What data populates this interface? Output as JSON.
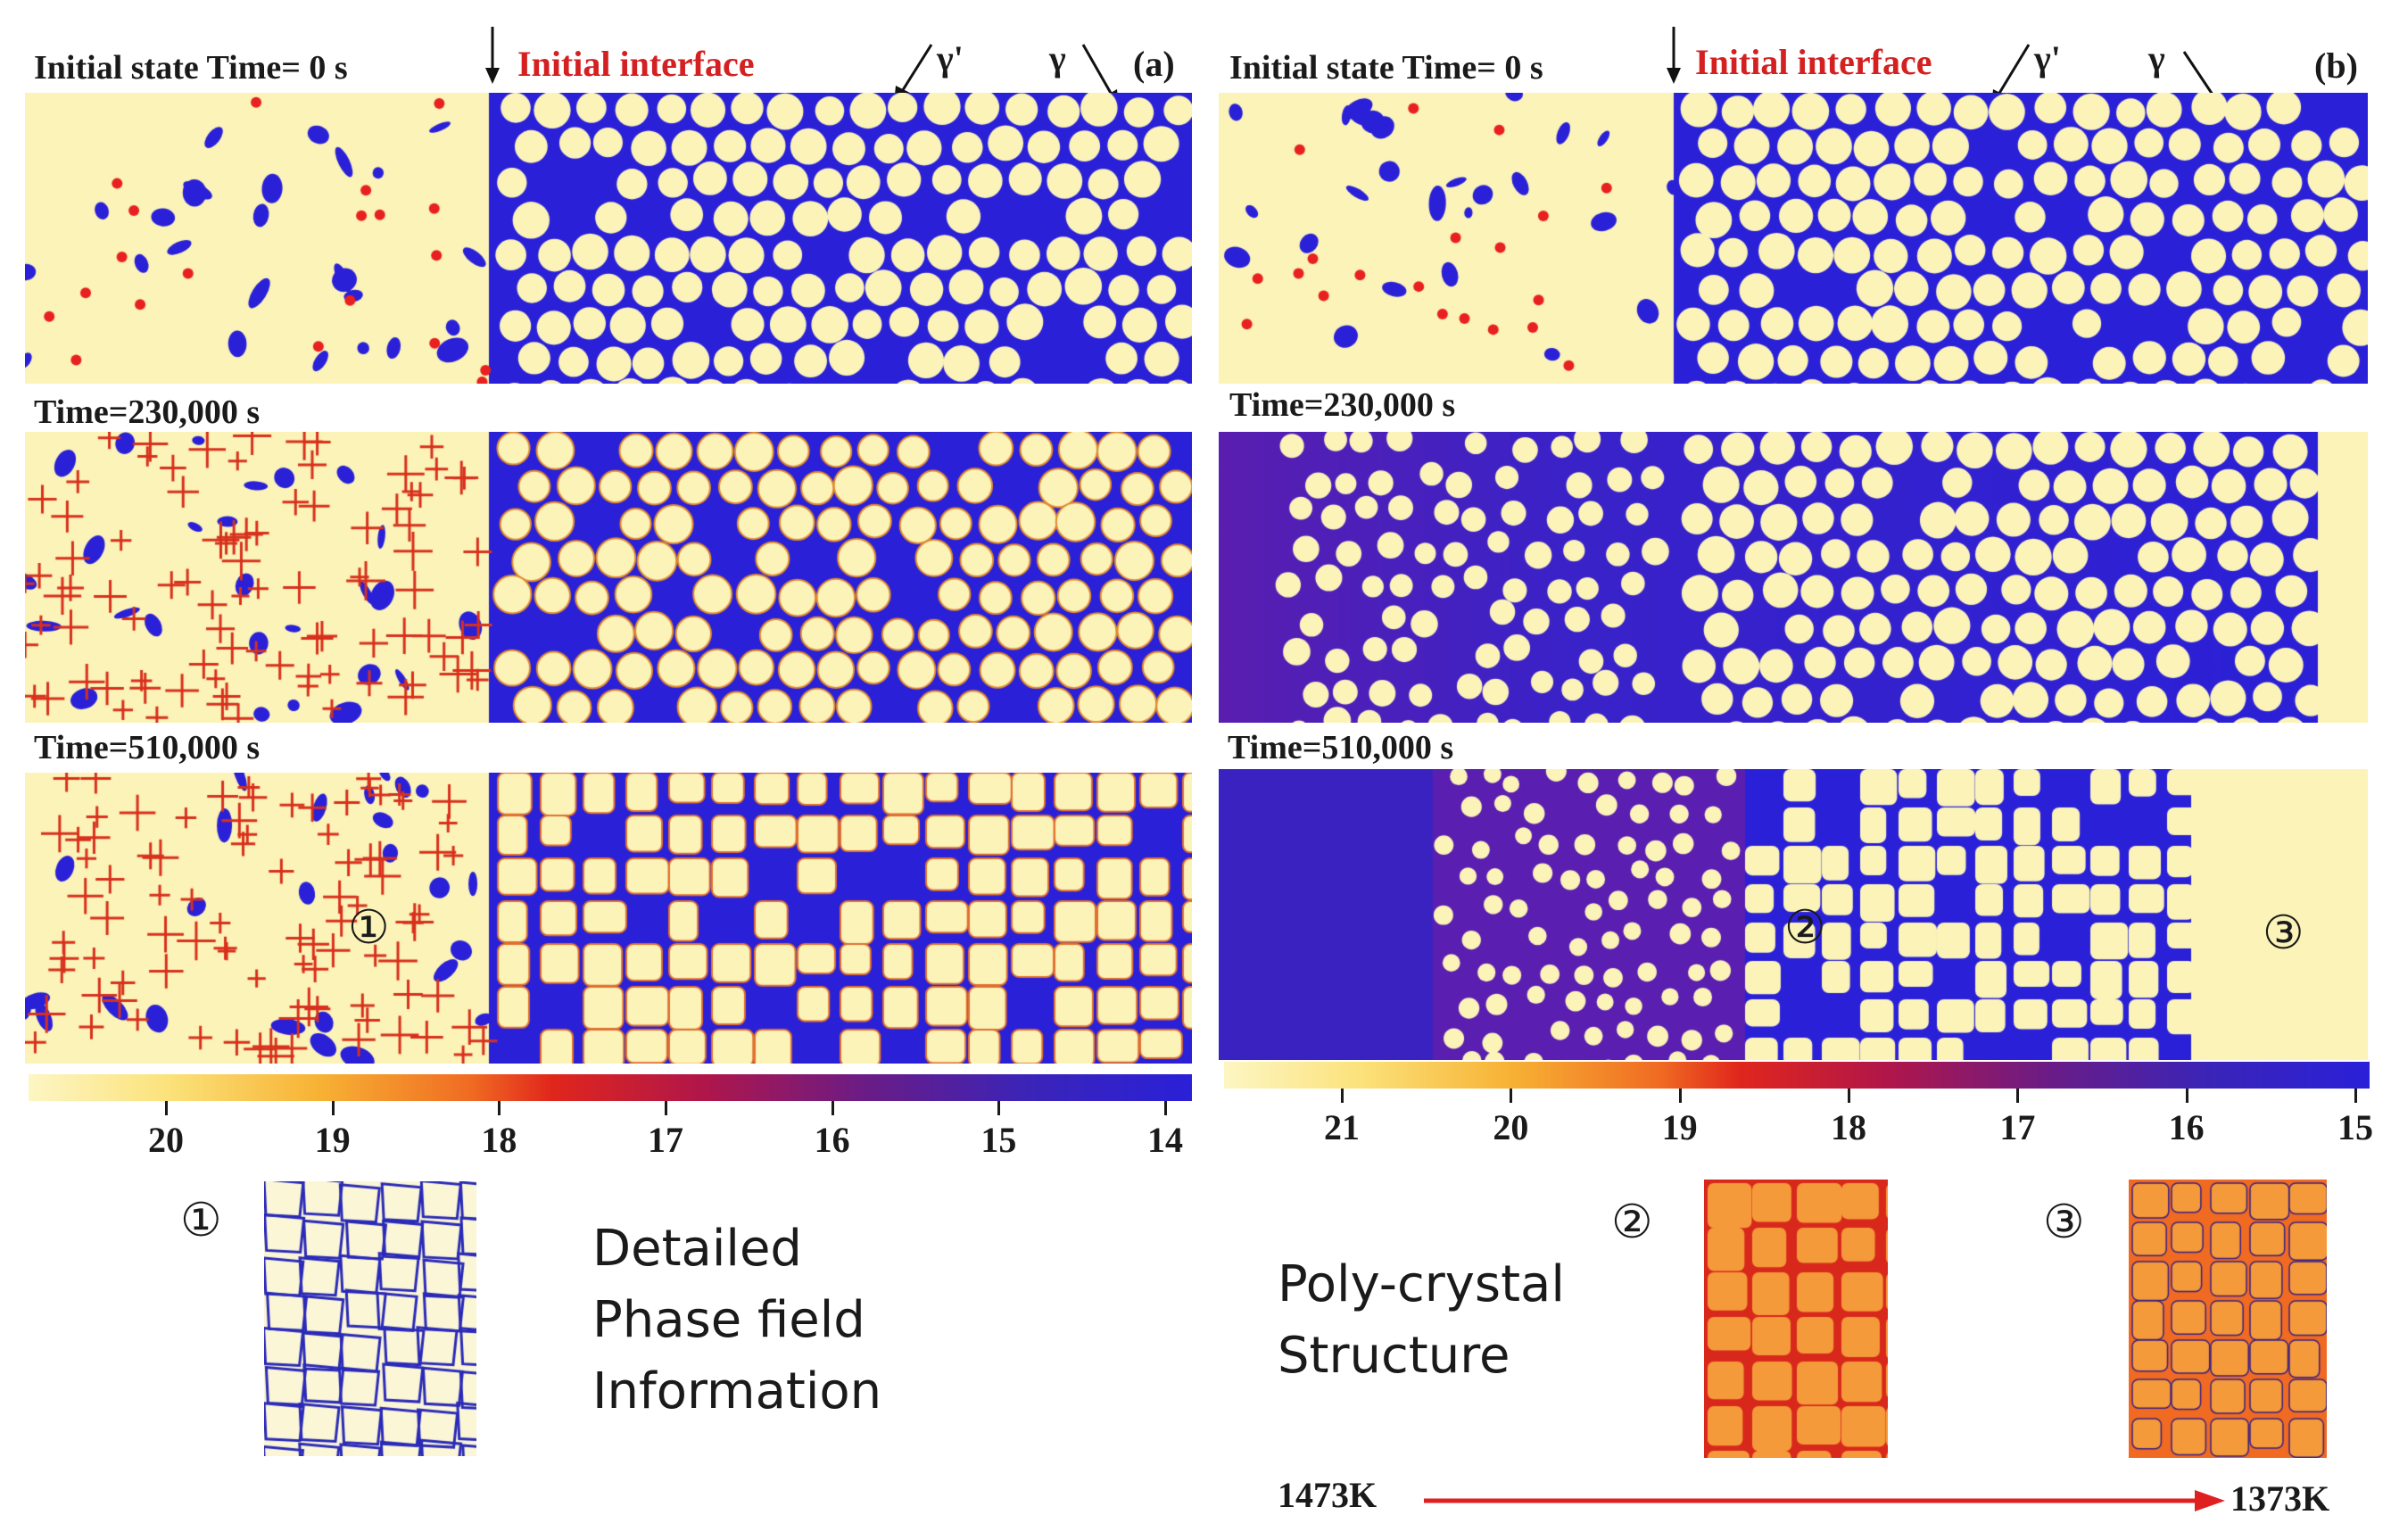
{
  "panel_a": {
    "tag": "(a)",
    "initial_label": "Initial state Time= 0 s",
    "interface_label": "Initial interface",
    "gamma_prime": "γ'",
    "gamma": "γ",
    "time_2": "Time=230,000 s",
    "time_3": "Time=510,000 s",
    "marker": "①",
    "colorbar_ticks": [
      "20",
      "19",
      "18",
      "17",
      "16",
      "15",
      "14"
    ]
  },
  "panel_b": {
    "tag": "(b)",
    "initial_label": "Initial state Time= 0 s",
    "interface_label": "Initial interface",
    "gamma_prime": "γ'",
    "gamma": "γ",
    "time_2": "Time=230,000 s",
    "time_3": "Time=510,000 s",
    "marker_2": "②",
    "marker_3": "③",
    "colorbar_ticks": [
      "21",
      "20",
      "19",
      "18",
      "17",
      "16",
      "15"
    ]
  },
  "detail": {
    "marker": "①",
    "text_line1": "Detailed",
    "text_line2": "Phase field",
    "text_line3": "Information"
  },
  "polycrystal": {
    "text_line1": "Poly-crystal",
    "text_line2": "Structure",
    "marker_2": "②",
    "marker_3": "③"
  },
  "temperature": {
    "start": "1473K",
    "end": "1373K",
    "arrow_color": "#e02020"
  },
  "colors": {
    "matrix_blue": "#2a20d8",
    "precipitate_cream": "#fbf3b8",
    "boundary_red": "#d8301c",
    "mixed_purple": "#5a1eb0"
  }
}
